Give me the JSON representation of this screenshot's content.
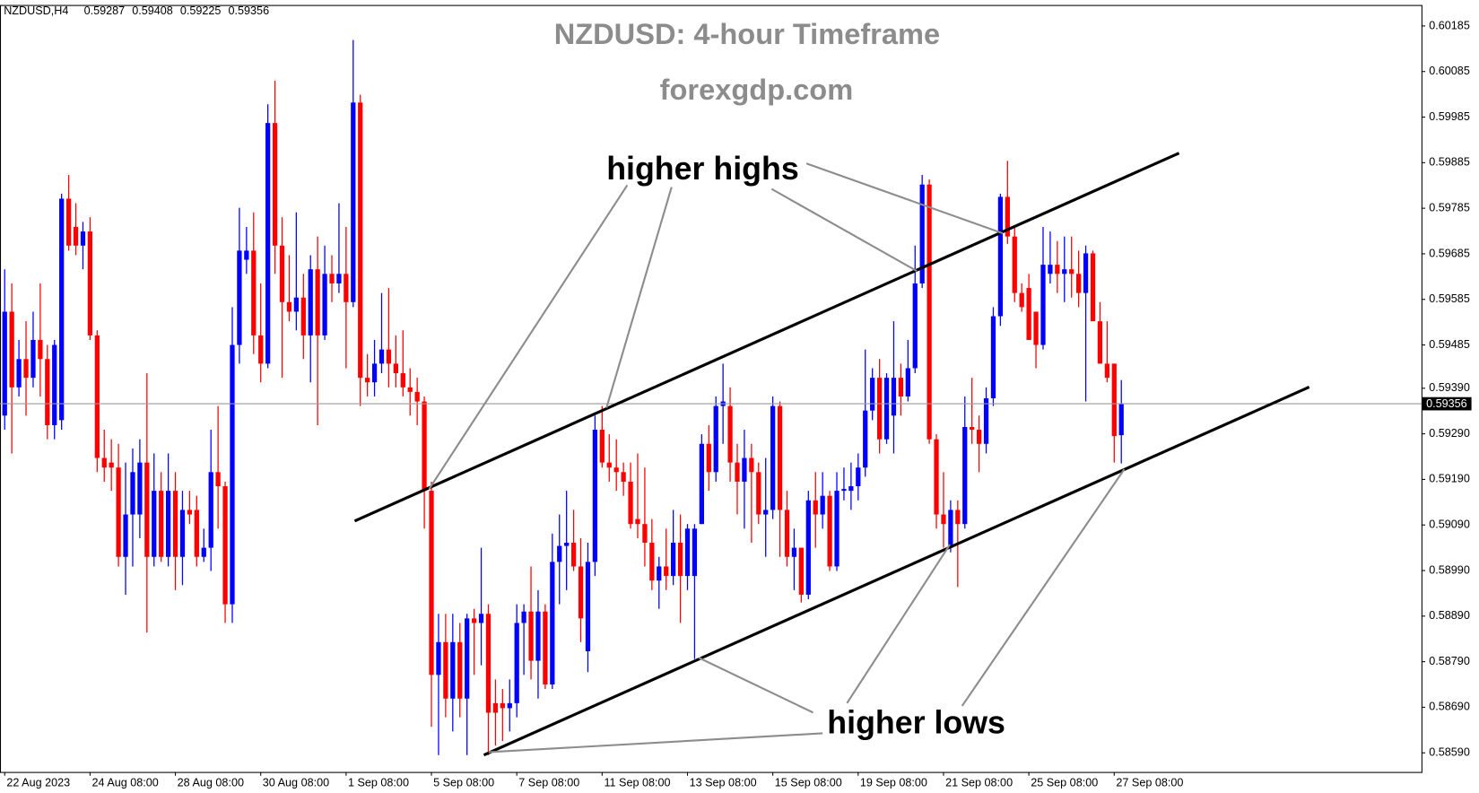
{
  "chart_data": {
    "type": "candlestick",
    "symbol": "NZDUSD,H4",
    "title": "NZDUSD: 4-hour Timeframe",
    "subtitle": "forexgdp.com",
    "annotations": [
      "higher highs",
      "higher lows"
    ],
    "up_color": "#0000ff",
    "down_color": "#ff0000",
    "grid": false,
    "xlim": [
      -0.66,
      199.2
    ],
    "ylim": [
      0.58548,
      0.60231
    ],
    "xticks": [
      {
        "value": 0,
        "label": "22 Aug 2023"
      },
      {
        "value": 12,
        "label": "24 Aug 08:00"
      },
      {
        "value": 24,
        "label": "28 Aug 08:00"
      },
      {
        "value": 36,
        "label": "30 Aug 08:00"
      },
      {
        "value": 48,
        "label": "1 Sep 08:00"
      },
      {
        "value": 60,
        "label": "5 Sep 08:00"
      },
      {
        "value": 72,
        "label": "7 Sep 08:00"
      },
      {
        "value": 84,
        "label": "11 Sep 08:00"
      },
      {
        "value": 96,
        "label": "13 Sep 08:00"
      },
      {
        "value": 108,
        "label": "15 Sep 08:00"
      },
      {
        "value": 120,
        "label": "19 Sep 08:00"
      },
      {
        "value": 132,
        "label": "21 Sep 08:00"
      },
      {
        "value": 144,
        "label": "25 Sep 08:00"
      },
      {
        "value": 156,
        "label": "27 Sep 08:00"
      }
    ],
    "yticks": [
      0.60185,
      0.60085,
      0.59985,
      0.59885,
      0.59785,
      0.59685,
      0.59585,
      0.59485,
      {
        "value": 0.5939,
        "label": "0.59390"
      },
      {
        "value": 0.5929,
        "label": "0.59290"
      },
      {
        "value": 0.5919,
        "label": "0.59190"
      },
      {
        "value": 0.5909,
        "label": "0.59090"
      },
      {
        "value": 0.5899,
        "label": "0.58990"
      },
      {
        "value": 0.5889,
        "label": "0.58890"
      },
      {
        "value": 0.5879,
        "label": "0.58790"
      },
      {
        "value": 0.5869,
        "label": "0.58690"
      },
      {
        "value": 0.5859,
        "label": "0.58590"
      }
    ],
    "ohlc": [
      [
        0.5933,
        0.59651,
        0.59299,
        0.59558
      ],
      [
        0.59558,
        0.5962,
        0.59247,
        0.59392
      ],
      [
        0.59392,
        0.59496,
        0.59372,
        0.59454
      ],
      [
        0.59454,
        0.59537,
        0.5933,
        0.59413
      ],
      [
        0.59413,
        0.59558,
        0.59392,
        0.59496
      ],
      [
        0.59496,
        0.5962,
        0.59372,
        0.59454
      ],
      [
        0.59454,
        0.59485,
        0.59278,
        0.59309
      ],
      [
        0.59309,
        0.59496,
        0.59278,
        0.59485
      ],
      [
        0.5932,
        0.59817,
        0.59299,
        0.59806
      ],
      [
        0.59806,
        0.59858,
        0.59692,
        0.59703
      ],
      [
        0.59744,
        0.59796,
        0.59682,
        0.59703
      ],
      [
        0.59703,
        0.59755,
        0.59651,
        0.59734
      ],
      [
        0.59734,
        0.59765,
        0.59496,
        0.59506
      ],
      [
        0.59506,
        0.59517,
        0.59206,
        0.59237
      ],
      [
        0.59237,
        0.59299,
        0.59185,
        0.59216
      ],
      [
        0.59227,
        0.59278,
        0.59165,
        0.59216
      ],
      [
        0.59216,
        0.59268,
        0.58999,
        0.5902
      ],
      [
        0.5902,
        0.59227,
        0.58937,
        0.59113
      ],
      [
        0.59113,
        0.59258,
        0.58999,
        0.59206
      ],
      [
        0.59113,
        0.59278,
        0.59061,
        0.59227
      ],
      [
        0.59227,
        0.59423,
        0.58854,
        0.5902
      ],
      [
        0.5902,
        0.59247,
        0.58999,
        0.59165
      ],
      [
        0.59165,
        0.59206,
        0.59009,
        0.5902
      ],
      [
        0.5902,
        0.59247,
        0.58999,
        0.59165
      ],
      [
        0.59165,
        0.59206,
        0.58947,
        0.5902
      ],
      [
        0.5902,
        0.59165,
        0.58958,
        0.59123
      ],
      [
        0.59123,
        0.59165,
        0.59092,
        0.59113
      ],
      [
        0.59123,
        0.59154,
        0.58999,
        0.5902
      ],
      [
        0.5902,
        0.59082,
        0.59009,
        0.5904
      ],
      [
        0.5904,
        0.59299,
        0.58989,
        0.59206
      ],
      [
        0.59206,
        0.59351,
        0.59082,
        0.59175
      ],
      [
        0.59175,
        0.59185,
        0.58875,
        0.58916
      ],
      [
        0.58916,
        0.59568,
        0.58875,
        0.59485
      ],
      [
        0.59485,
        0.59786,
        0.59444,
        0.59692
      ],
      [
        0.59672,
        0.59744,
        0.59641,
        0.59692
      ],
      [
        0.59692,
        0.59776,
        0.59465,
        0.59506
      ],
      [
        0.59506,
        0.5962,
        0.59403,
        0.59444
      ],
      [
        0.59444,
        0.60013,
        0.59434,
        0.59972
      ],
      [
        0.59972,
        0.60065,
        0.59641,
        0.59703
      ],
      [
        0.59703,
        0.59765,
        0.59413,
        0.59579
      ],
      [
        0.59579,
        0.59682,
        0.59537,
        0.59558
      ],
      [
        0.59558,
        0.59776,
        0.59517,
        0.59589
      ],
      [
        0.59589,
        0.59641,
        0.59454,
        0.59506
      ],
      [
        0.59506,
        0.59682,
        0.59403,
        0.59651
      ],
      [
        0.59651,
        0.59723,
        0.59309,
        0.59506
      ],
      [
        0.59506,
        0.59703,
        0.59496,
        0.59641
      ],
      [
        0.59641,
        0.59682,
        0.59579,
        0.5962
      ],
      [
        0.5962,
        0.59796,
        0.59599,
        0.59641
      ],
      [
        0.59641,
        0.59744,
        0.59434,
        0.59579
      ],
      [
        0.59579,
        0.60154,
        0.59568,
        0.60017
      ],
      [
        0.60017,
        0.60034,
        0.59351,
        0.59413
      ],
      [
        0.59413,
        0.59465,
        0.59372,
        0.59403
      ],
      [
        0.59403,
        0.59496,
        0.59372,
        0.59444
      ],
      [
        0.59444,
        0.59599,
        0.59423,
        0.59475
      ],
      [
        0.59475,
        0.5961,
        0.59392,
        0.59444
      ],
      [
        0.59444,
        0.59506,
        0.59392,
        0.59423
      ],
      [
        0.59423,
        0.59517,
        0.59372,
        0.59392
      ],
      [
        0.59392,
        0.59434,
        0.5933,
        0.59382
      ],
      [
        0.59382,
        0.59413,
        0.59309,
        0.59361
      ],
      [
        0.59361,
        0.59372,
        0.59082,
        0.59165
      ],
      [
        0.59165,
        0.59185,
        0.58647,
        0.58761
      ],
      [
        0.58761,
        0.58895,
        0.58585,
        0.58833
      ],
      [
        0.58833,
        0.58895,
        0.58668,
        0.58709
      ],
      [
        0.58709,
        0.58895,
        0.58637,
        0.58833
      ],
      [
        0.58833,
        0.58875,
        0.58668,
        0.58709
      ],
      [
        0.58709,
        0.58895,
        0.58585,
        0.58885
      ],
      [
        0.58885,
        0.58906,
        0.58761,
        0.58875
      ],
      [
        0.58875,
        0.5904,
        0.58782,
        0.58895
      ],
      [
        0.58895,
        0.58916,
        0.58585,
        0.58678
      ],
      [
        0.58699,
        0.58751,
        0.58606,
        0.58678
      ],
      [
        0.58699,
        0.5873,
        0.58616,
        0.58688
      ],
      [
        0.58688,
        0.58751,
        0.58637,
        0.58699
      ],
      [
        0.58699,
        0.58916,
        0.58668,
        0.58875
      ],
      [
        0.58875,
        0.58916,
        0.58761,
        0.589
      ],
      [
        0.589,
        0.58999,
        0.58751,
        0.58792
      ],
      [
        0.58792,
        0.58947,
        0.58709,
        0.589
      ],
      [
        0.589,
        0.58916,
        0.5873,
        0.5874
      ],
      [
        0.5874,
        0.59071,
        0.5873,
        0.59009
      ],
      [
        0.59009,
        0.59113,
        0.58916,
        0.59044
      ],
      [
        0.59044,
        0.59165,
        0.58947,
        0.59051
      ],
      [
        0.59051,
        0.59123,
        0.58989,
        0.58999
      ],
      [
        0.58999,
        0.59061,
        0.58833,
        0.58885
      ],
      [
        0.58813,
        0.59051,
        0.58767,
        0.59009
      ],
      [
        0.59009,
        0.5933,
        0.58978,
        0.59299
      ],
      [
        0.59299,
        0.59351,
        0.59216,
        0.59227
      ],
      [
        0.59227,
        0.59289,
        0.59185,
        0.59216
      ],
      [
        0.59216,
        0.59278,
        0.59165,
        0.59206
      ],
      [
        0.59206,
        0.59227,
        0.59154,
        0.59185
      ],
      [
        0.59185,
        0.59227,
        0.59082,
        0.59092
      ],
      [
        0.59103,
        0.59247,
        0.59061,
        0.59092
      ],
      [
        0.59092,
        0.59216,
        0.58999,
        0.59051
      ],
      [
        0.59051,
        0.59103,
        0.58947,
        0.58968
      ],
      [
        0.58968,
        0.5902,
        0.58906,
        0.58999
      ],
      [
        0.58999,
        0.59082,
        0.58947,
        0.58978
      ],
      [
        0.58978,
        0.59123,
        0.58958,
        0.59051
      ],
      [
        0.59051,
        0.59113,
        0.58875,
        0.58978
      ],
      [
        0.58978,
        0.59092,
        0.58947,
        0.59082
      ],
      [
        0.58978,
        0.59092,
        0.58796,
        0.59082
      ],
      [
        0.59092,
        0.59289,
        0.59092,
        0.59268
      ],
      [
        0.59268,
        0.59309,
        0.59165,
        0.59206
      ],
      [
        0.59206,
        0.59372,
        0.59185,
        0.59351
      ],
      [
        0.59351,
        0.59444,
        0.59268,
        0.59361
      ],
      [
        0.59351,
        0.59392,
        0.59185,
        0.59227
      ],
      [
        0.59227,
        0.59268,
        0.59113,
        0.59185
      ],
      [
        0.59185,
        0.59299,
        0.59082,
        0.59237
      ],
      [
        0.59237,
        0.59268,
        0.59051,
        0.59206
      ],
      [
        0.59206,
        0.59227,
        0.59092,
        0.59113
      ],
      [
        0.59113,
        0.59237,
        0.5902,
        0.59123
      ],
      [
        0.59123,
        0.59372,
        0.59103,
        0.59351
      ],
      [
        0.59351,
        0.59361,
        0.5902,
        0.59123
      ],
      [
        0.59123,
        0.59165,
        0.58999,
        0.5902
      ],
      [
        0.5902,
        0.59082,
        0.58947,
        0.5904
      ],
      [
        0.5904,
        0.5904,
        0.5892,
        0.58937
      ],
      [
        0.58937,
        0.59165,
        0.58927,
        0.59144
      ],
      [
        0.59144,
        0.59206,
        0.5904,
        0.59113
      ],
      [
        0.59113,
        0.59206,
        0.59082,
        0.59154
      ],
      [
        0.59154,
        0.59165,
        0.58989,
        0.58999
      ],
      [
        0.58999,
        0.59206,
        0.58989,
        0.59165
      ],
      [
        0.59165,
        0.59216,
        0.59144,
        0.59169
      ],
      [
        0.59165,
        0.59227,
        0.59123,
        0.59175
      ],
      [
        0.59175,
        0.59247,
        0.59144,
        0.59216
      ],
      [
        0.59216,
        0.59475,
        0.59196,
        0.59341
      ],
      [
        0.59341,
        0.59434,
        0.5932,
        0.59413
      ],
      [
        0.59413,
        0.59454,
        0.59247,
        0.59278
      ],
      [
        0.59278,
        0.59423,
        0.59268,
        0.59413
      ],
      [
        0.5933,
        0.59537,
        0.59247,
        0.59413
      ],
      [
        0.59413,
        0.59444,
        0.5933,
        0.59372
      ],
      [
        0.59372,
        0.59496,
        0.59361,
        0.59434
      ],
      [
        0.59434,
        0.59703,
        0.59423,
        0.5962
      ],
      [
        0.5962,
        0.59858,
        0.5961,
        0.59837
      ],
      [
        0.59837,
        0.59848,
        0.59268,
        0.59278
      ],
      [
        0.59278,
        0.59289,
        0.59082,
        0.59113
      ],
      [
        0.59113,
        0.59206,
        0.5904,
        0.59092
      ],
      [
        0.5904,
        0.59144,
        0.5903,
        0.59123
      ],
      [
        0.59123,
        0.59144,
        0.58954,
        0.59092
      ],
      [
        0.59092,
        0.59372,
        0.59082,
        0.59305
      ],
      [
        0.59305,
        0.59413,
        0.59268,
        0.59299
      ],
      [
        0.59299,
        0.5933,
        0.59206,
        0.59268
      ],
      [
        0.59268,
        0.59392,
        0.59247,
        0.59368
      ],
      [
        0.59368,
        0.59568,
        0.59351,
        0.59548
      ],
      [
        0.59548,
        0.59817,
        0.59527,
        0.5981
      ],
      [
        0.5981,
        0.59889,
        0.59707,
        0.59723
      ],
      [
        0.59723,
        0.59744,
        0.59579,
        0.59599
      ],
      [
        0.59599,
        0.5962,
        0.59558,
        0.59568
      ],
      [
        0.5961,
        0.59641,
        0.59496,
        0.59496
      ],
      [
        0.59558,
        0.59558,
        0.59434,
        0.59485
      ],
      [
        0.59485,
        0.59744,
        0.59475,
        0.59661
      ],
      [
        0.59641,
        0.59734,
        0.5962,
        0.59661
      ],
      [
        0.59661,
        0.59713,
        0.59599,
        0.59641
      ],
      [
        0.59641,
        0.59723,
        0.59579,
        0.59651
      ],
      [
        0.59651,
        0.59723,
        0.59589,
        0.59641
      ],
      [
        0.59641,
        0.59692,
        0.59568,
        0.59599
      ],
      [
        0.59599,
        0.59703,
        0.59361,
        0.59686
      ],
      [
        0.59686,
        0.59692,
        0.59537,
        0.59537
      ],
      [
        0.59537,
        0.59579,
        0.59444,
        0.59444
      ],
      [
        0.59444,
        0.59537,
        0.59403,
        0.59413
      ],
      [
        0.59444,
        0.59444,
        0.59227,
        0.59285
      ],
      [
        0.59287,
        0.59408,
        0.59225,
        0.59356
      ]
    ]
  }
}
